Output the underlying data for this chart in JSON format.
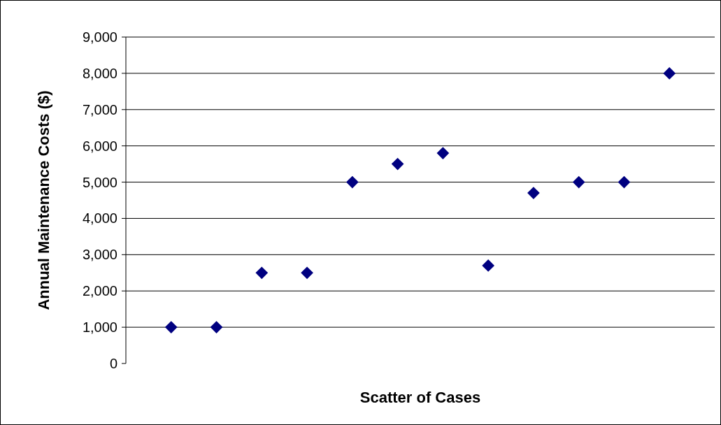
{
  "chart_data": {
    "type": "scatter",
    "xlabel": "Scatter of Cases",
    "ylabel": "Annual Maintenance Costs ($)",
    "categories": [
      null,
      null,
      null,
      null,
      null,
      null,
      null,
      null,
      null,
      null,
      null,
      null
    ],
    "series": [
      {
        "color": "#000080",
        "values": [
          1000,
          1000,
          2500,
          2500,
          5000,
          5500,
          5800,
          2700,
          4700,
          5000,
          5000,
          8000
        ]
      }
    ],
    "ylim": [
      0,
      9000
    ],
    "yticks": [
      {
        "value": 0,
        "label": "0"
      },
      {
        "value": 1000,
        "label": "1,000"
      },
      {
        "value": 2000,
        "label": "2,000"
      },
      {
        "value": 3000,
        "label": "3,000"
      },
      {
        "value": 4000,
        "label": "4,000"
      },
      {
        "value": 5000,
        "label": "5,000"
      },
      {
        "value": 6000,
        "label": "6,000"
      },
      {
        "value": 7000,
        "label": "7,000"
      },
      {
        "value": 8000,
        "label": "8,000"
      },
      {
        "value": 9000,
        "label": "9,000"
      }
    ],
    "grid": "y",
    "marker": "diamond"
  }
}
